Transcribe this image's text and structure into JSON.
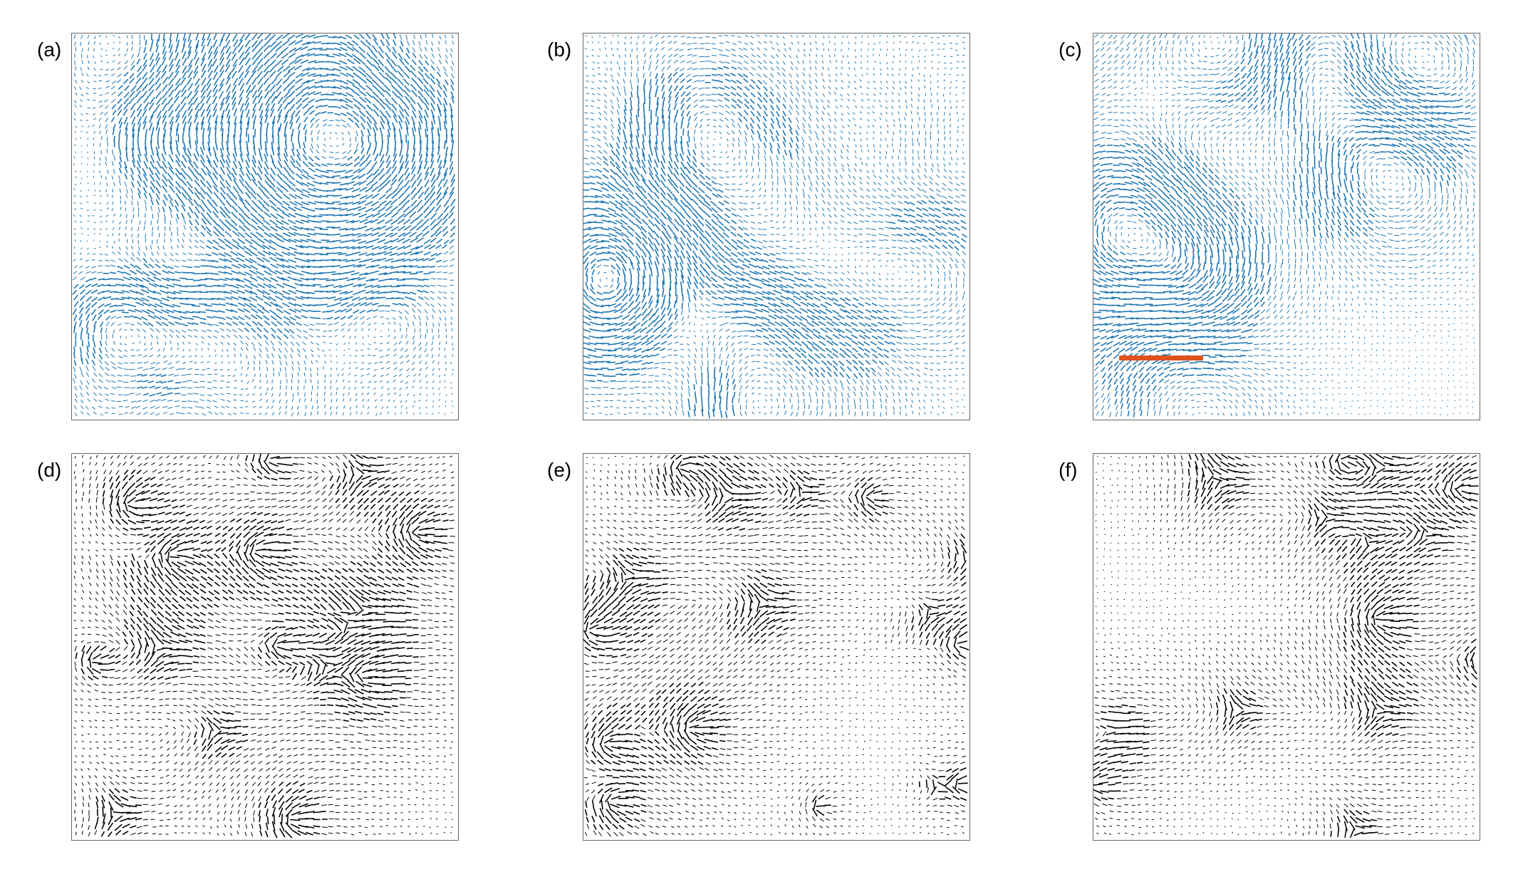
{
  "figure": {
    "panels": [
      {
        "id": "a",
        "label": "(a)",
        "row": 0,
        "col": 0,
        "field": "velocity",
        "color": "#1f77b4"
      },
      {
        "id": "b",
        "label": "(b)",
        "row": 0,
        "col": 1,
        "field": "velocity",
        "color": "#1f77b4"
      },
      {
        "id": "c",
        "label": "(c)",
        "row": 0,
        "col": 2,
        "field": "velocity",
        "color": "#1f77b4",
        "scale_bar": true
      },
      {
        "id": "d",
        "label": "(d)",
        "row": 1,
        "col": 0,
        "field": "director",
        "color": "#000000"
      },
      {
        "id": "e",
        "label": "(e)",
        "row": 1,
        "col": 1,
        "field": "director",
        "color": "#000000"
      },
      {
        "id": "f",
        "label": "(f)",
        "row": 1,
        "col": 2,
        "field": "director",
        "color": "#000000"
      }
    ],
    "scale_bar_color": "#e0521d",
    "colors": {
      "velocity_arrows": "#1f77b4",
      "director_arrows": "#000000",
      "frame": "#666666"
    }
  }
}
